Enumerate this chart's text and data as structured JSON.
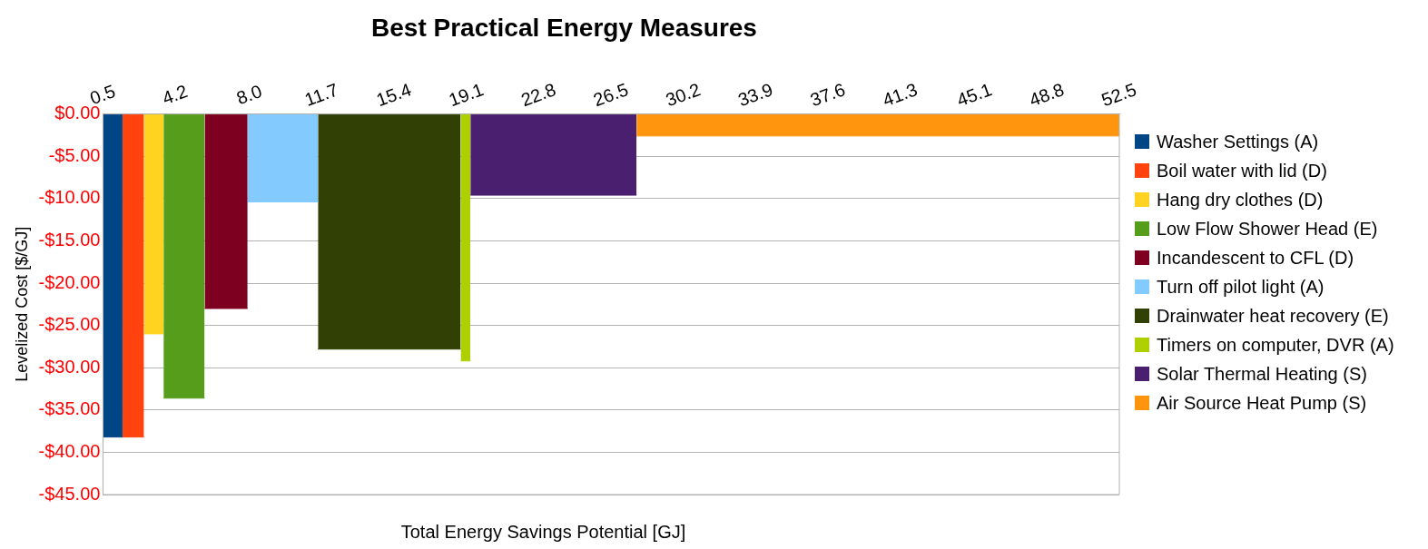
{
  "chart_data": {
    "type": "area",
    "title": "Best Practical Energy Measures",
    "xlabel": "Total Energy Savings Potential [GJ]",
    "ylabel": "Levelized Cost [$/GJ]",
    "series": [
      {
        "name": "Washer Settings (A)",
        "color": "#004586",
        "x": [
          0.5,
          1.5
        ],
        "values": [
          -38.2,
          -38.2
        ]
      },
      {
        "name": "Boil water with lid (D)",
        "color": "#ff420e",
        "x": [
          1.5,
          2.6
        ],
        "values": [
          -38.2,
          -38.2
        ]
      },
      {
        "name": "Hang dry clothes (D)",
        "color": "#ffd320",
        "x": [
          2.6,
          3.6
        ],
        "values": [
          -26,
          -26
        ]
      },
      {
        "name": "Low Flow Shower Head (E)",
        "color": "#579d1c",
        "x": [
          3.6,
          5.7
        ],
        "values": [
          -33.6,
          -33.6
        ]
      },
      {
        "name": "Incandescent to CFL (D)",
        "color": "#7e0021",
        "x": [
          5.7,
          7.9
        ],
        "values": [
          -23,
          -23
        ]
      },
      {
        "name": "Turn off pilot light (A)",
        "color": "#83caff",
        "x": [
          7.9,
          11.5
        ],
        "values": [
          -10.4,
          -10.4
        ]
      },
      {
        "name": "Drainwater heat recovery (E)",
        "color": "#314004",
        "x": [
          11.5,
          18.8
        ],
        "values": [
          -27.8,
          -27.8
        ]
      },
      {
        "name": "Timers on computer, DVR (A)",
        "color": "#aecf00",
        "x": [
          18.8,
          19.3
        ],
        "values": [
          -29.2,
          -29.2
        ]
      },
      {
        "name": "Solar Thermal Heating (S)",
        "color": "#4b1f6f",
        "x": [
          19.3,
          27.8
        ],
        "values": [
          -9.6,
          -9.6
        ]
      },
      {
        "name": "Air Source Heat Pump (S)",
        "color": "#ff950e",
        "x": [
          27.8,
          52.5
        ],
        "values": [
          -2.6,
          -2.6
        ]
      }
    ],
    "xlim": [
      0.5,
      52.5
    ],
    "xticks": [
      0.5,
      4.2,
      {
        "value": 8,
        "label": "8.0"
      },
      11.7,
      15.4,
      19.1,
      22.8,
      26.5,
      30.2,
      33.9,
      37.6,
      41.3,
      45.1,
      48.8,
      52.5
    ],
    "ylim": [
      -45,
      0
    ],
    "yticks": [
      {
        "value": 0,
        "label": "$0.00"
      },
      {
        "value": -5,
        "label": "-$5.00"
      },
      {
        "value": -10,
        "label": "-$10.00"
      },
      {
        "value": -15,
        "label": "-$15.00"
      },
      {
        "value": -20,
        "label": "-$20.00"
      },
      {
        "value": -25,
        "label": "-$25.00"
      },
      {
        "value": -30,
        "label": "-$30.00"
      },
      {
        "value": -35,
        "label": "-$35.00"
      },
      {
        "value": -40,
        "label": "-$40.00"
      },
      {
        "value": -45,
        "label": "-$45.00"
      }
    ],
    "grid": "y",
    "legend": "right"
  }
}
